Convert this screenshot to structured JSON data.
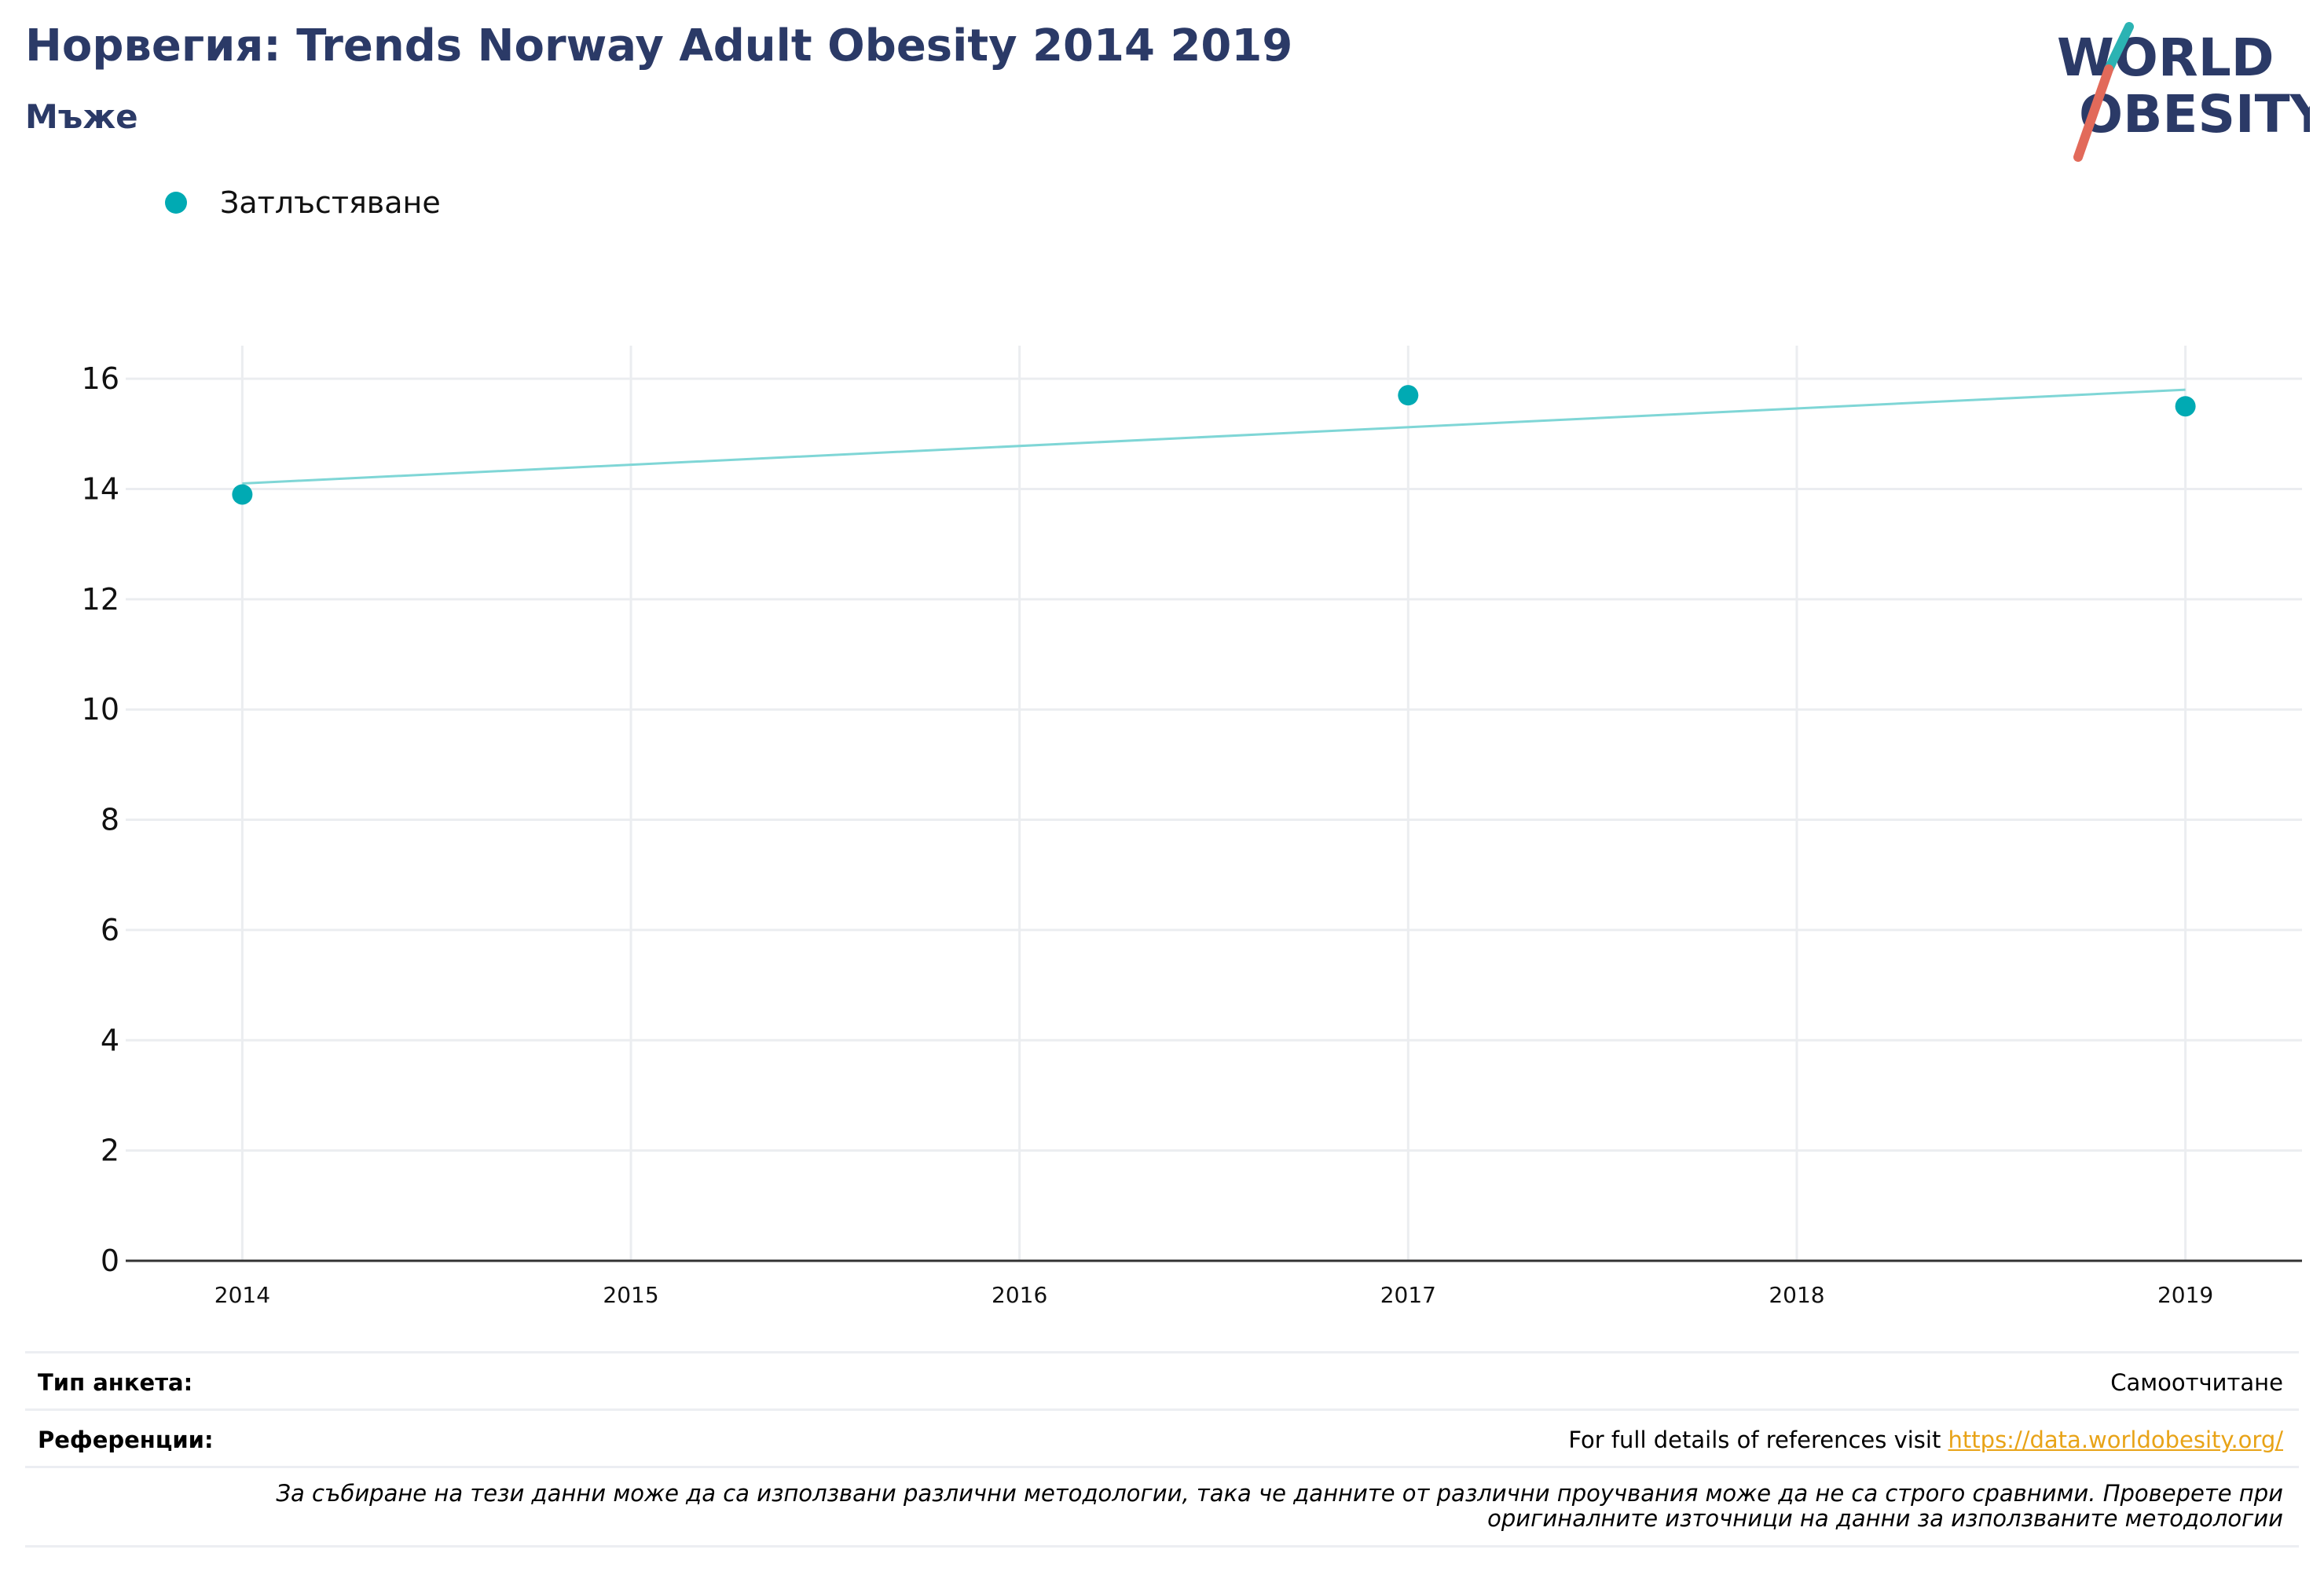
{
  "header": {
    "title": "Норвегия: Trends Norway Adult Obesity 2014 2019",
    "subtitle": "Мъже"
  },
  "logo": {
    "line1": "WORLD",
    "line2": "OBESITY",
    "colors": {
      "text": "#2b3a67",
      "slash_top": "#2bb3b3",
      "slash_bottom": "#e26a5a"
    }
  },
  "legend": {
    "items": [
      {
        "label": "Затлъстяване",
        "color": "#00aab3"
      }
    ]
  },
  "chart_data": {
    "type": "scatter",
    "title": "Норвегия: Trends Norway Adult Obesity 2014 2019",
    "subtitle": "Мъже",
    "xlabel": "",
    "ylabel": "",
    "xlim": [
      2013.7,
      2019.3
    ],
    "ylim": [
      0,
      16.6
    ],
    "x_ticks": [
      2014,
      2015,
      2016,
      2017,
      2018,
      2019
    ],
    "y_ticks": [
      0,
      2,
      4,
      6,
      8,
      10,
      12,
      14,
      16
    ],
    "grid": true,
    "legend_position": "top-left",
    "series": [
      {
        "name": "Затлъстяване",
        "color": "#00aab3",
        "points": [
          {
            "x": 2014,
            "y": 13.9
          },
          {
            "x": 2017,
            "y": 15.7
          },
          {
            "x": 2019,
            "y": 15.5
          }
        ]
      }
    ],
    "trendline": {
      "color": "#7fd6d6",
      "start": {
        "x": 2014,
        "y": 14.1
      },
      "end": {
        "x": 2019,
        "y": 15.8
      }
    }
  },
  "footer": {
    "survey_type_label": "Тип анкета:",
    "survey_type_value": "Самоотчитане",
    "references_label": "Референции:",
    "references_text": "For full details of references visit ",
    "references_link": "https://data.worldobesity.org/",
    "note_line1": "За събиране на тези данни може да са използвани различни методологии, така че данните от различни проучвания може да не са строго сравними. Проверете при",
    "note_line2": "оригиналните източници на данни за използваните методологии"
  }
}
